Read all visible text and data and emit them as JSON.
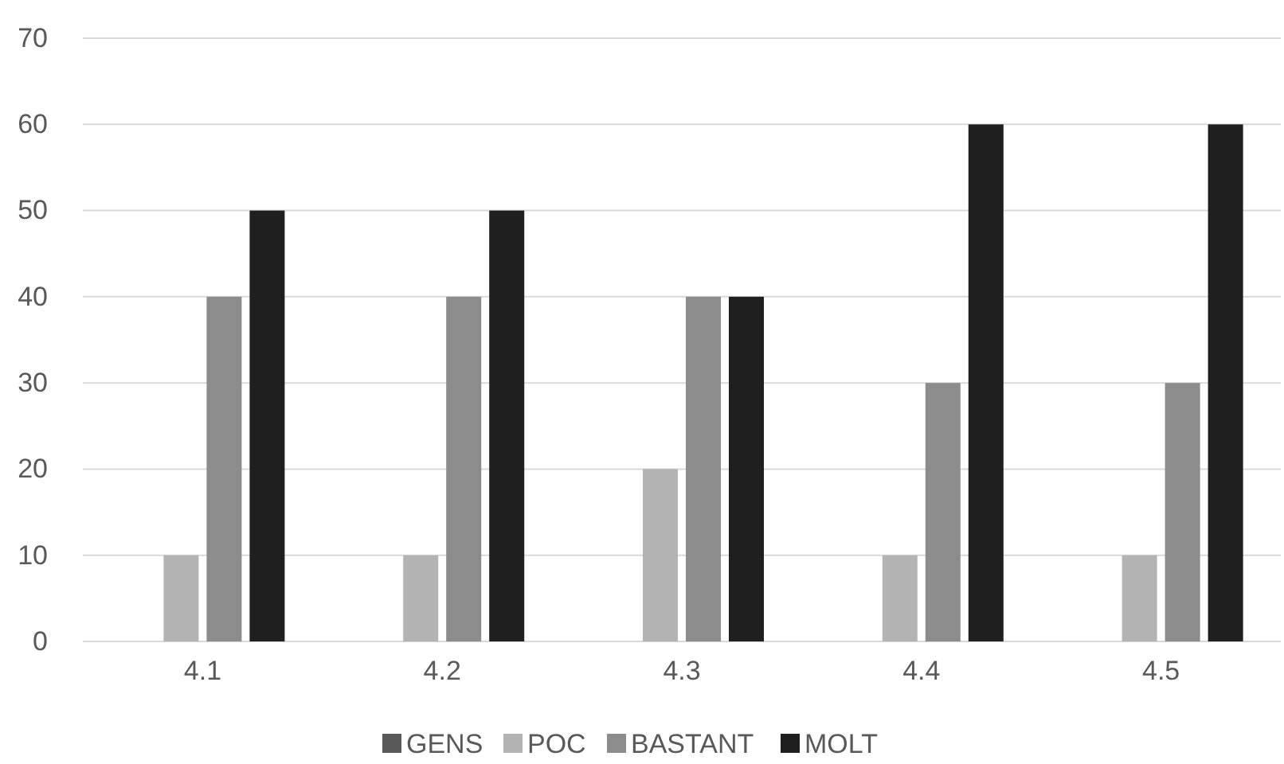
{
  "chart_data": {
    "type": "bar",
    "categories": [
      "4.1",
      "4.2",
      "4.3",
      "4.4",
      "4.5"
    ],
    "series": [
      {
        "name": "GENS",
        "color": "#595959",
        "values": [
          0,
          0,
          0,
          0,
          0
        ]
      },
      {
        "name": "POC",
        "color": "#b3b3b3",
        "values": [
          10,
          10,
          20,
          10,
          10
        ]
      },
      {
        "name": "BASTANT",
        "color": "#8c8c8c",
        "values": [
          40,
          40,
          40,
          30,
          30
        ]
      },
      {
        "name": "MOLT",
        "color": "#1f1f1f",
        "values": [
          50,
          50,
          40,
          60,
          60
        ]
      }
    ],
    "ylim": [
      0,
      70
    ],
    "yticks": [
      0,
      10,
      20,
      30,
      40,
      50,
      60,
      70
    ],
    "grid": "y",
    "legend": "bottom"
  }
}
